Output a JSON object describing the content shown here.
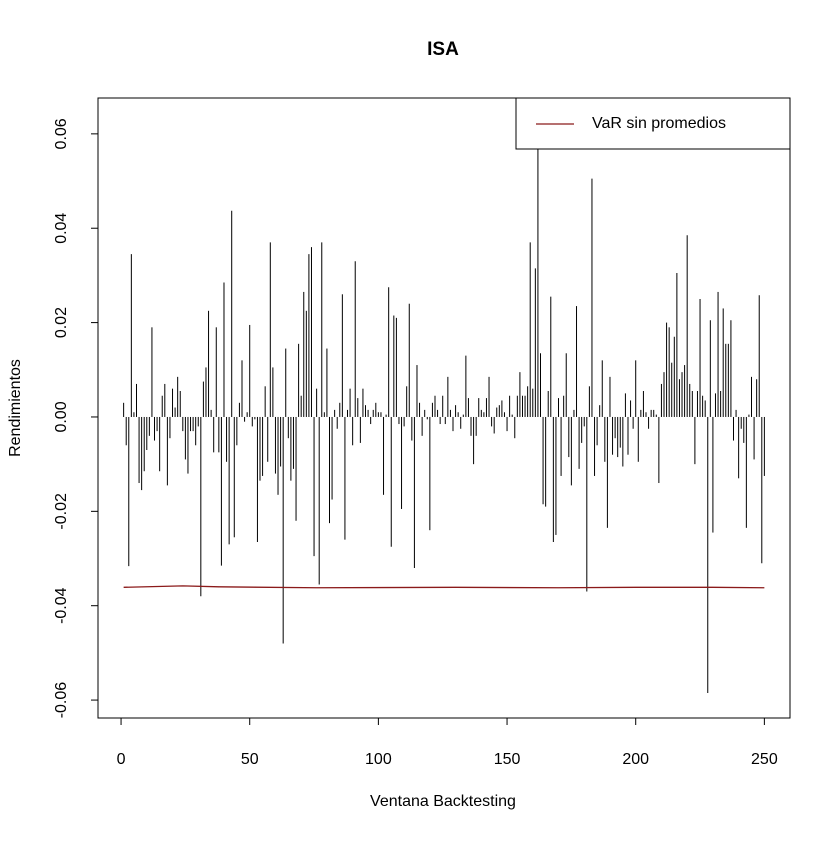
{
  "chart_data": {
    "type": "line",
    "title": "ISA",
    "x_label": "Ventana Backtesting",
    "y_label": "Rendimientos",
    "xlim": [
      -8.96,
      259.96
    ],
    "ylim": [
      -0.0638,
      0.0676
    ],
    "xticks": [
      0,
      50,
      100,
      150,
      200,
      250
    ],
    "yticks": [
      -0.06,
      -0.04,
      -0.02,
      {
        "value": 0,
        "label": "0.00"
      },
      0.02,
      0.04,
      0.06
    ],
    "legend": "top-right",
    "series": [
      {
        "style": "spike",
        "color": "#000000",
        "x": [
          1,
          2,
          3,
          4,
          5,
          6,
          7,
          8,
          9,
          10,
          11,
          12,
          13,
          14,
          15,
          16,
          17,
          18,
          19,
          20,
          21,
          22,
          23,
          24,
          25,
          26,
          27,
          28,
          29,
          30,
          31,
          32,
          33,
          34,
          35,
          36,
          37,
          38,
          39,
          40,
          41,
          42,
          43,
          44,
          45,
          46,
          47,
          48,
          49,
          50,
          51,
          52,
          53,
          54,
          55,
          56,
          57,
          58,
          59,
          60,
          61,
          62,
          63,
          64,
          65,
          66,
          67,
          68,
          69,
          70,
          71,
          72,
          73,
          74,
          75,
          76,
          77,
          78,
          79,
          80,
          81,
          82,
          83,
          84,
          85,
          86,
          87,
          88,
          89,
          90,
          91,
          92,
          93,
          94,
          95,
          96,
          97,
          98,
          99,
          100,
          101,
          102,
          103,
          104,
          105,
          106,
          107,
          108,
          109,
          110,
          111,
          112,
          113,
          114,
          115,
          116,
          117,
          118,
          119,
          120,
          121,
          122,
          123,
          124,
          125,
          126,
          127,
          128,
          129,
          130,
          131,
          132,
          133,
          134,
          135,
          136,
          137,
          138,
          139,
          140,
          141,
          142,
          143,
          144,
          145,
          146,
          147,
          148,
          149,
          150,
          151,
          152,
          153,
          154,
          155,
          156,
          157,
          158,
          159,
          160,
          161,
          162,
          163,
          164,
          165,
          166,
          167,
          168,
          169,
          170,
          171,
          172,
          173,
          174,
          175,
          176,
          177,
          178,
          179,
          180,
          181,
          182,
          183,
          184,
          185,
          186,
          187,
          188,
          189,
          190,
          191,
          192,
          193,
          194,
          195,
          196,
          197,
          198,
          199,
          200,
          201,
          202,
          203,
          204,
          205,
          206,
          207,
          208,
          209,
          210,
          211,
          212,
          213,
          214,
          215,
          216,
          217,
          218,
          219,
          220,
          221,
          222,
          223,
          224,
          225,
          226,
          227,
          228,
          229,
          230,
          231,
          232,
          233,
          234,
          235,
          236,
          237,
          238,
          239,
          240,
          241,
          242,
          243,
          244,
          245,
          246,
          247,
          248,
          249,
          250
        ],
        "values": [
          0.003,
          -0.006,
          -0.0316,
          0.0345,
          0.001,
          0.007,
          -0.014,
          -0.0155,
          -0.0115,
          -0.007,
          -0.004,
          0.019,
          -0.005,
          -0.003,
          -0.0115,
          0.0045,
          0.007,
          -0.0145,
          -0.0045,
          0.006,
          0.002,
          0.0085,
          0.0055,
          -0.003,
          -0.009,
          -0.012,
          -0.003,
          -0.003,
          -0.006,
          -0.002,
          -0.038,
          0.0075,
          0.0105,
          0.0225,
          0.0015,
          -0.0075,
          0.019,
          -0.0075,
          -0.0315,
          0.0285,
          -0.0095,
          -0.027,
          0.0437,
          -0.0255,
          -0.006,
          0.003,
          0.012,
          -0.001,
          0.001,
          0.0195,
          -0.002,
          -0.0005,
          -0.0265,
          -0.0135,
          -0.0125,
          0.0065,
          -0.0095,
          0.037,
          0.0105,
          -0.012,
          -0.0165,
          -0.0105,
          -0.048,
          0.0145,
          -0.0045,
          -0.0135,
          -0.011,
          -0.022,
          0.0155,
          0.0045,
          0.0265,
          0.0225,
          0.0345,
          0.036,
          -0.0295,
          0.006,
          -0.0355,
          0.037,
          0.001,
          0.0145,
          -0.0225,
          -0.0175,
          0.0015,
          -0.0025,
          0.003,
          0.026,
          -0.026,
          0.0015,
          0.006,
          -0.006,
          0.033,
          0.004,
          -0.0055,
          0.006,
          0.0025,
          0.0015,
          -0.0015,
          0.0015,
          0.003,
          0.001,
          0.001,
          -0.0165,
          0.0005,
          0.0275,
          -0.0275,
          0.0215,
          0.021,
          -0.0015,
          -0.0195,
          -0.002,
          0.0065,
          0.024,
          -0.005,
          -0.032,
          0.011,
          0.003,
          -0.004,
          0.0015,
          -0.0005,
          -0.024,
          0.003,
          0.0045,
          0.0015,
          -0.0015,
          0.0045,
          -0.0015,
          0.0085,
          0.0015,
          -0.003,
          0.0025,
          0.001,
          -0.0025,
          0.0005,
          0.013,
          0.004,
          -0.004,
          -0.01,
          -0.004,
          0.004,
          0.0015,
          0.001,
          0.004,
          0.0085,
          -0.002,
          -0.0035,
          0.002,
          0.0025,
          0.0035,
          0.001,
          -0.003,
          0.0045,
          0.0005,
          -0.0045,
          0.0045,
          0.0095,
          0.0045,
          0.0045,
          0.0065,
          0.037,
          0.006,
          0.0315,
          0.063,
          0.0135,
          -0.0185,
          -0.019,
          0.0055,
          0.0255,
          -0.0265,
          -0.025,
          0.004,
          -0.0125,
          0.0045,
          0.0135,
          -0.0085,
          -0.0145,
          0.0015,
          0.0235,
          -0.011,
          -0.0055,
          -0.002,
          -0.037,
          0.0065,
          0.0505,
          -0.0125,
          -0.006,
          0.0025,
          0.012,
          -0.0095,
          -0.0235,
          0.0085,
          -0.008,
          -0.0045,
          -0.0085,
          -0.0065,
          -0.0105,
          0.005,
          -0.008,
          0.0035,
          -0.0025,
          0.012,
          -0.0095,
          0.0015,
          0.0055,
          0.001,
          -0.0025,
          0.0015,
          0.0015,
          0.0005,
          -0.014,
          0.007,
          0.0095,
          0.02,
          0.019,
          0.0115,
          0.017,
          0.0305,
          0.008,
          0.0095,
          0.011,
          0.0385,
          0.007,
          0.0055,
          -0.01,
          0.0055,
          0.025,
          0.0045,
          0.0035,
          -0.0585,
          0.0205,
          -0.0245,
          0.005,
          0.0265,
          0.0055,
          0.023,
          0.0155,
          0.0155,
          0.0205,
          -0.005,
          0.0015,
          -0.013,
          -0.0025,
          -0.0055,
          -0.0235,
          0.0005,
          0.0085,
          -0.009,
          0.008,
          0.0258,
          -0.031,
          -0.0125
        ]
      },
      {
        "name": "VaR sin promedios",
        "style": "line",
        "color": "#8b1a1a",
        "x": [
          1,
          24,
          38,
          76,
          130,
          170,
          200,
          230,
          250
        ],
        "values": [
          -0.0361,
          -0.0358,
          -0.036,
          -0.0362,
          -0.0361,
          -0.0362,
          -0.0361,
          -0.0361,
          -0.0362
        ]
      }
    ]
  }
}
